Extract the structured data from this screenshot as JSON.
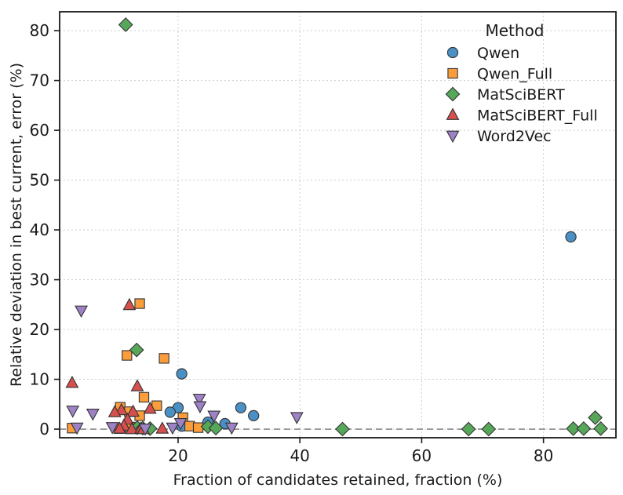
{
  "chart_data": {
    "type": "scatter",
    "title": "",
    "xlabel": "Fraction of candidates retained, fraction (%)",
    "ylabel": "Relative deviation in best current, error (%)",
    "xlim": [
      0.55,
      91.9
    ],
    "ylim": [
      -1.73,
      83.8
    ],
    "xticks": [
      20,
      40,
      60,
      80
    ],
    "yticks": [
      0,
      10,
      20,
      30,
      40,
      50,
      60,
      70,
      80
    ],
    "grid": true,
    "grid_color": "#cccccc",
    "text_color": "#1a1a1a",
    "spine_color": "#1a1a1a",
    "marker_edge_color": "#333333",
    "zero_line": {
      "y": 0,
      "color": "#8a8a8a",
      "style": "dashed"
    },
    "legend": {
      "title": "Method",
      "position": "upper-right"
    },
    "series": [
      {
        "name": "Qwen",
        "marker": "circle",
        "color": "#4a90c4",
        "points": [
          [
            84.5,
            38.6
          ],
          [
            20.6,
            11.1
          ],
          [
            30.3,
            4.3
          ],
          [
            32.4,
            2.7
          ],
          [
            20.0,
            4.3
          ],
          [
            18.7,
            3.4
          ],
          [
            24.9,
            1.4
          ],
          [
            27.7,
            1.1
          ],
          [
            20.6,
            0.6
          ]
        ]
      },
      {
        "name": "Qwen_Full",
        "marker": "square",
        "color": "#fb9d3b",
        "points": [
          [
            13.7,
            25.2
          ],
          [
            11.6,
            14.8
          ],
          [
            17.7,
            14.2
          ],
          [
            14.4,
            6.4
          ],
          [
            16.5,
            4.7
          ],
          [
            10.5,
            4.4
          ],
          [
            12.0,
            3.5
          ],
          [
            13.7,
            2.7
          ],
          [
            20.8,
            2.3
          ],
          [
            21.9,
            0.6
          ],
          [
            23.3,
            0.3
          ],
          [
            2.6,
            0.2
          ],
          [
            10.4,
            0.1
          ],
          [
            12.1,
            0.4
          ]
        ]
      },
      {
        "name": "MatSciBERT",
        "marker": "diamond",
        "color": "#57a75a",
        "points": [
          [
            11.4,
            81.2
          ],
          [
            13.2,
            15.9
          ],
          [
            13.3,
            0.3
          ],
          [
            14.2,
            0.2
          ],
          [
            15.4,
            0.1
          ],
          [
            24.9,
            0.5
          ],
          [
            26.2,
            0.2
          ],
          [
            47.0,
            0.0
          ],
          [
            67.7,
            0.0
          ],
          [
            71.0,
            0.0
          ],
          [
            84.9,
            0.1
          ],
          [
            86.6,
            0.1
          ],
          [
            88.5,
            2.3
          ],
          [
            89.4,
            0.1
          ]
        ]
      },
      {
        "name": "MatSciBERT_Full",
        "marker": "triangle-up",
        "color": "#d5504d",
        "points": [
          [
            12.0,
            24.9
          ],
          [
            2.6,
            9.3
          ],
          [
            13.3,
            8.6
          ],
          [
            15.4,
            4.1
          ],
          [
            10.7,
            3.8
          ],
          [
            12.6,
            3.5
          ],
          [
            9.6,
            3.4
          ],
          [
            11.7,
            1.9
          ],
          [
            11.1,
            0.7
          ],
          [
            10.4,
            0.1
          ],
          [
            12.4,
            0.0
          ],
          [
            13.9,
            0.1
          ],
          [
            14.3,
            0.0
          ],
          [
            17.4,
            0.1
          ]
        ]
      },
      {
        "name": "Word2Vec",
        "marker": "triangle-down",
        "color": "#9d82c6",
        "points": [
          [
            4.1,
            23.8
          ],
          [
            2.7,
            3.7
          ],
          [
            6.0,
            3.1
          ],
          [
            23.5,
            6.1
          ],
          [
            23.6,
            4.6
          ],
          [
            25.9,
            2.7
          ],
          [
            39.5,
            2.4
          ],
          [
            9.2,
            0.4
          ],
          [
            3.4,
            0.3
          ],
          [
            19.1,
            0.3
          ],
          [
            28.8,
            0.3
          ],
          [
            20.4,
            1.2
          ],
          [
            14.6,
            0.1
          ]
        ]
      }
    ]
  }
}
